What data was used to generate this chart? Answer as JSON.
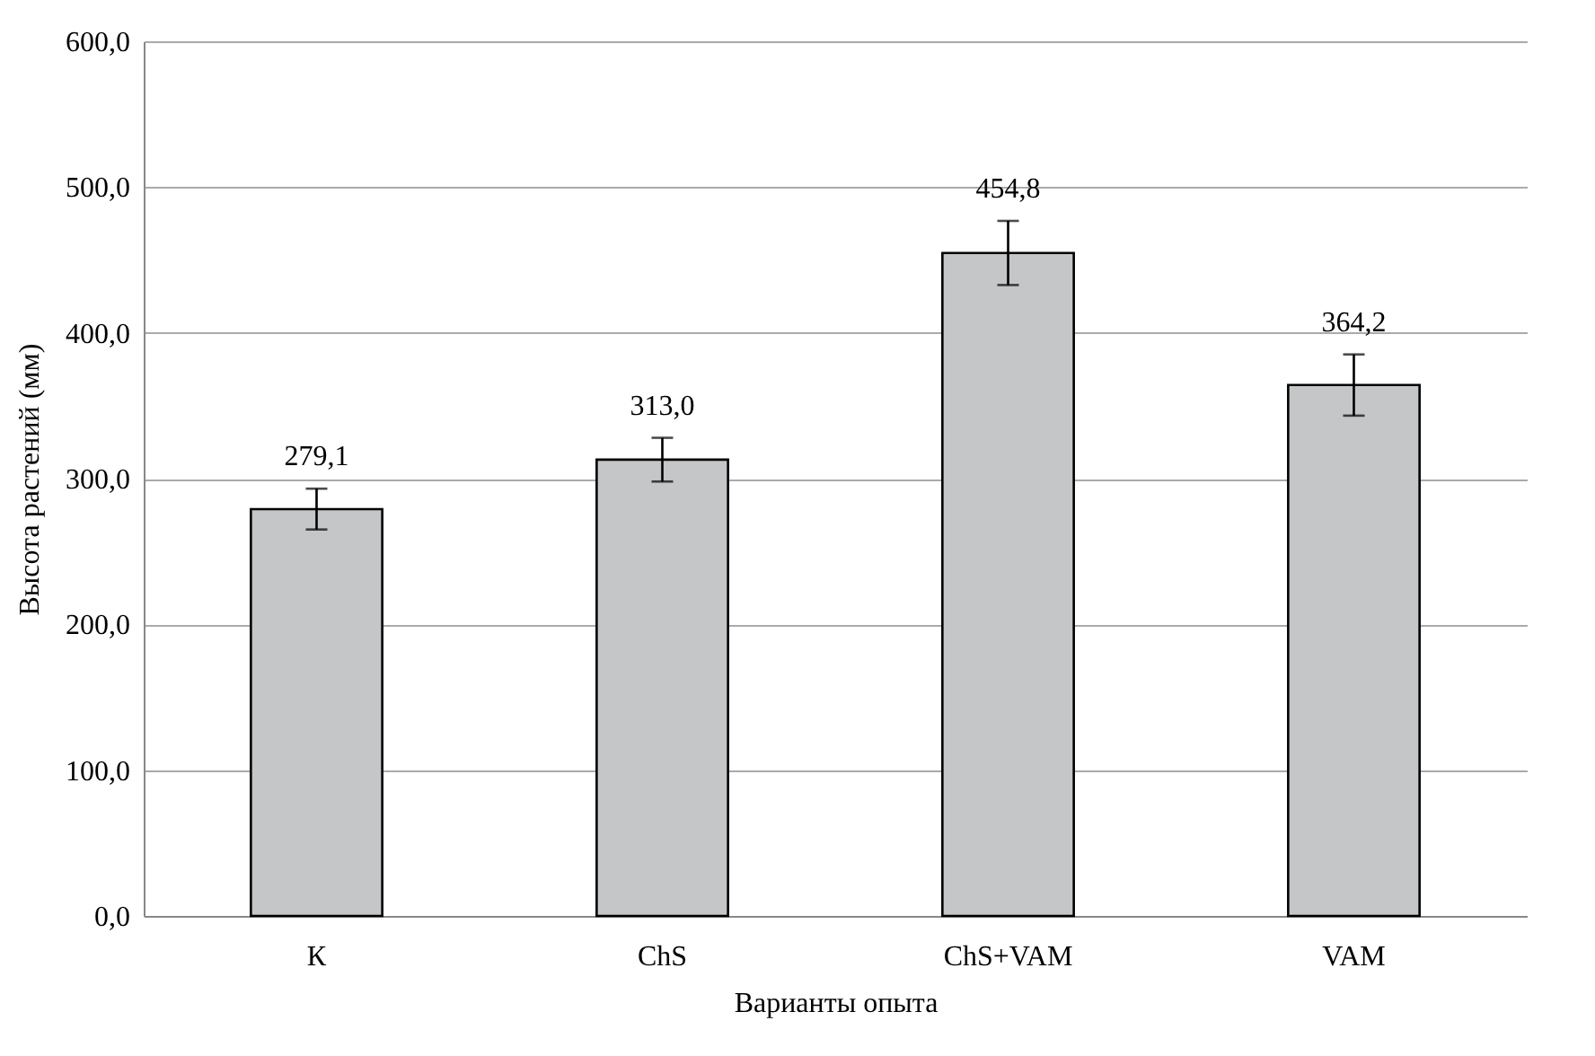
{
  "chart_data": {
    "type": "bar",
    "xlabel": "Варианты опыта",
    "ylabel": "Высота растений (мм)",
    "categories": [
      "К",
      "ChS",
      "ChS+VAM",
      "VAM"
    ],
    "values": [
      279.1,
      313.0,
      454.8,
      364.2
    ],
    "errors": [
      14,
      15,
      22,
      21
    ],
    "value_labels": [
      "279,1",
      "313,0",
      "454,8",
      "364,2"
    ],
    "color": "#c5c6c8",
    "ylim": [
      0,
      600
    ],
    "yticks": [
      {
        "value": 0,
        "label": "0,0"
      },
      {
        "value": 100,
        "label": "100,0"
      },
      {
        "value": 200,
        "label": "200,0"
      },
      {
        "value": 300,
        "label": "300,0"
      },
      {
        "value": 400,
        "label": "400,0"
      },
      {
        "value": 500,
        "label": "500,0"
      },
      {
        "value": 600,
        "label": "600,0"
      }
    ],
    "grid": "y"
  }
}
